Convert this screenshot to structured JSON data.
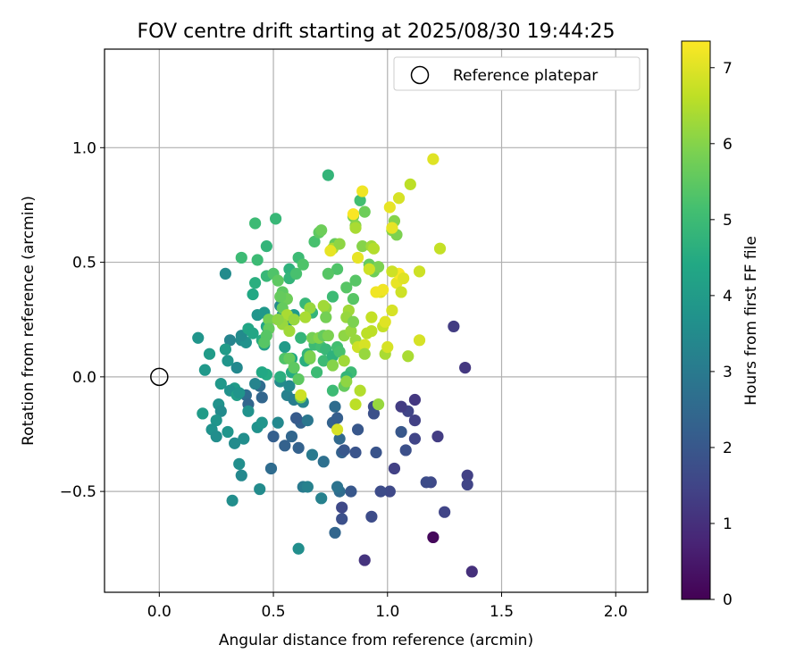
{
  "chart_data": {
    "type": "scatter",
    "title": "FOV centre drift starting at 2025/08/30 19:44:25",
    "xlabel": "Angular distance from reference (arcmin)",
    "ylabel": "Rotation from reference (arcmin)",
    "xlim": [
      -0.24,
      2.14
    ],
    "ylim": [
      -0.94,
      1.43
    ],
    "xticks": [
      0.0,
      0.5,
      1.0,
      1.5,
      2.0
    ],
    "xtick_labels": [
      "0.0",
      "0.5",
      "1.0",
      "1.5",
      "2.0"
    ],
    "yticks": [
      -0.5,
      0.0,
      0.5,
      1.0
    ],
    "ytick_labels": [
      "−0.5",
      "0.0",
      "0.5",
      "1.0"
    ],
    "grid": true,
    "legend": {
      "position": "top-right",
      "entries": [
        "Reference platepar"
      ]
    },
    "reference_point": {
      "x": 0.0,
      "y": 0.0
    },
    "colorbar": {
      "label": "Hours from first FF file",
      "range": [
        0,
        7.35
      ],
      "ticks": [
        0,
        1,
        2,
        3,
        4,
        5,
        6,
        7
      ],
      "tick_labels": [
        "0",
        "1",
        "2",
        "3",
        "4",
        "5",
        "6",
        "7"
      ]
    },
    "points": [
      [
        1.2,
        -0.7,
        0.15
      ],
      [
        1.37,
        -0.85,
        1.0
      ],
      [
        0.9,
        -0.8,
        1.1
      ],
      [
        1.34,
        0.04,
        1.2
      ],
      [
        1.29,
        0.22,
        1.3
      ],
      [
        1.22,
        -0.26,
        1.3
      ],
      [
        1.35,
        -0.43,
        1.4
      ],
      [
        1.35,
        -0.47,
        1.5
      ],
      [
        1.25,
        -0.59,
        1.5
      ],
      [
        1.19,
        -0.46,
        1.6
      ],
      [
        1.17,
        -0.46,
        1.7
      ],
      [
        1.12,
        -0.1,
        1.2
      ],
      [
        1.12,
        -0.19,
        1.4
      ],
      [
        1.12,
        -0.27,
        1.5
      ],
      [
        1.09,
        -0.15,
        1.5
      ],
      [
        1.06,
        -0.13,
        1.3
      ],
      [
        1.03,
        -0.4,
        1.4
      ],
      [
        1.01,
        -0.5,
        1.6
      ],
      [
        0.97,
        -0.5,
        1.7
      ],
      [
        1.08,
        -0.32,
        1.8
      ],
      [
        1.06,
        -0.24,
        2.0
      ],
      [
        0.95,
        -0.33,
        1.9
      ],
      [
        0.94,
        -0.13,
        1.7
      ],
      [
        0.94,
        -0.16,
        1.8
      ],
      [
        0.93,
        -0.61,
        1.7
      ],
      [
        0.86,
        -0.33,
        1.9
      ],
      [
        0.87,
        -0.23,
        2.0
      ],
      [
        0.84,
        -0.5,
        2.0
      ],
      [
        0.8,
        -0.62,
        1.8
      ],
      [
        0.8,
        -0.57,
        1.6
      ],
      [
        0.8,
        -0.33,
        2.3
      ],
      [
        0.81,
        -0.32,
        2.0
      ],
      [
        0.77,
        -0.68,
        2.4
      ],
      [
        0.79,
        -0.5,
        2.6
      ],
      [
        0.78,
        -0.48,
        2.8
      ],
      [
        0.77,
        -0.13,
        2.6
      ],
      [
        0.76,
        -0.2,
        2.3
      ],
      [
        0.78,
        -0.18,
        2.2
      ],
      [
        0.79,
        -0.27,
        2.5
      ],
      [
        0.72,
        -0.37,
        2.7
      ],
      [
        0.62,
        -0.2,
        2.3
      ],
      [
        0.61,
        -0.31,
        2.3
      ],
      [
        0.6,
        -0.18,
        2.1
      ],
      [
        0.58,
        -0.26,
        2.4
      ],
      [
        0.55,
        -0.3,
        2.3
      ],
      [
        0.5,
        -0.26,
        2.2
      ],
      [
        0.49,
        -0.4,
        2.6
      ],
      [
        0.45,
        -0.09,
        2.4
      ],
      [
        0.44,
        -0.04,
        2.6
      ],
      [
        0.38,
        -0.08,
        2.6
      ],
      [
        0.39,
        -0.12,
        2.4
      ],
      [
        0.65,
        -0.19,
        2.9
      ],
      [
        0.67,
        -0.34,
        3.0
      ],
      [
        0.71,
        -0.53,
        3.2
      ],
      [
        0.63,
        -0.48,
        3.0
      ],
      [
        0.65,
        -0.48,
        3.2
      ],
      [
        0.61,
        -0.75,
        3.6
      ],
      [
        0.52,
        -0.2,
        3.4
      ],
      [
        0.56,
        -0.08,
        3.2
      ],
      [
        0.57,
        -0.04,
        3.4
      ],
      [
        0.59,
        -0.1,
        3.1
      ],
      [
        0.63,
        -0.11,
        3.3
      ],
      [
        0.53,
        -0.02,
        3.5
      ],
      [
        0.42,
        -0.03,
        3.3
      ],
      [
        0.39,
        -0.15,
        3.7
      ],
      [
        0.43,
        -0.22,
        3.7
      ],
      [
        0.45,
        -0.2,
        3.8
      ],
      [
        0.37,
        -0.27,
        3.6
      ],
      [
        0.33,
        -0.29,
        3.5
      ],
      [
        0.36,
        -0.43,
        3.4
      ],
      [
        0.35,
        -0.38,
        3.6
      ],
      [
        0.32,
        -0.54,
        3.6
      ],
      [
        0.44,
        -0.49,
        3.5
      ],
      [
        0.3,
        -0.24,
        3.8
      ],
      [
        0.26,
        -0.12,
        3.7
      ],
      [
        0.27,
        -0.15,
        3.5
      ],
      [
        0.25,
        -0.19,
        3.8
      ],
      [
        0.23,
        -0.23,
        3.7
      ],
      [
        0.25,
        -0.26,
        3.6
      ],
      [
        0.27,
        -0.03,
        3.9
      ],
      [
        0.33,
        -0.05,
        4.0
      ],
      [
        0.31,
        -0.06,
        3.7
      ],
      [
        0.34,
        -0.08,
        4.1
      ],
      [
        0.35,
        -0.07,
        3.8
      ],
      [
        0.19,
        -0.16,
        4.0
      ],
      [
        0.3,
        0.07,
        3.8
      ],
      [
        0.34,
        0.04,
        3.4
      ],
      [
        0.31,
        0.16,
        3.3
      ],
      [
        0.36,
        0.16,
        3.5
      ],
      [
        0.38,
        0.15,
        3.7
      ],
      [
        0.36,
        0.18,
        3.5
      ],
      [
        0.29,
        0.45,
        3.5
      ],
      [
        0.17,
        0.17,
        3.8
      ],
      [
        0.2,
        0.03,
        3.9
      ],
      [
        0.22,
        0.1,
        4.0
      ],
      [
        0.29,
        0.12,
        4.0
      ],
      [
        0.39,
        0.21,
        4.3
      ],
      [
        0.41,
        0.19,
        4.3
      ],
      [
        0.43,
        0.27,
        3.8
      ],
      [
        0.46,
        0.14,
        4.1
      ],
      [
        0.45,
        0.16,
        4.5
      ],
      [
        0.47,
        0.22,
        4.3
      ],
      [
        0.46,
        0.28,
        3.9
      ],
      [
        0.53,
        0.31,
        3.5
      ],
      [
        0.54,
        0.27,
        3.6
      ],
      [
        0.56,
        0.24,
        3.7
      ],
      [
        0.59,
        0.27,
        4.0
      ],
      [
        0.55,
        0.13,
        4.0
      ],
      [
        0.58,
        0.08,
        4.4
      ],
      [
        0.58,
        0.02,
        4.5
      ],
      [
        0.53,
        0.0,
        4.6
      ],
      [
        0.47,
        0.01,
        4.5
      ],
      [
        0.45,
        0.02,
        4.4
      ],
      [
        0.41,
        0.36,
        4.4
      ],
      [
        0.42,
        0.41,
        4.6
      ],
      [
        0.47,
        0.57,
        4.8
      ],
      [
        0.51,
        0.69,
        4.9
      ],
      [
        0.47,
        0.44,
        4.9
      ],
      [
        0.36,
        0.52,
        5.0
      ],
      [
        0.42,
        0.67,
        5.0
      ],
      [
        0.43,
        0.51,
        5.0
      ],
      [
        0.57,
        0.47,
        4.7
      ],
      [
        0.57,
        0.43,
        4.8
      ],
      [
        0.61,
        0.52,
        5.0
      ],
      [
        0.68,
        0.59,
        5.2
      ],
      [
        0.74,
        0.88,
        4.8
      ],
      [
        0.6,
        0.45,
        5.2
      ],
      [
        0.63,
        0.49,
        5.3
      ],
      [
        0.64,
        0.32,
        4.9
      ],
      [
        0.67,
        0.28,
        4.8
      ],
      [
        0.62,
        0.17,
        4.8
      ],
      [
        0.64,
        0.07,
        4.6
      ],
      [
        0.65,
        0.1,
        4.8
      ],
      [
        0.68,
        0.14,
        5.0
      ],
      [
        0.71,
        0.13,
        5.1
      ],
      [
        0.69,
        0.02,
        5.0
      ],
      [
        0.72,
        0.07,
        5.0
      ],
      [
        0.73,
        0.12,
        4.9
      ],
      [
        0.76,
        0.09,
        4.7
      ],
      [
        0.78,
        0.13,
        5.1
      ],
      [
        0.79,
        0.11,
        5.2
      ],
      [
        0.84,
        0.02,
        5.0
      ],
      [
        0.82,
        0.0,
        4.8
      ],
      [
        0.76,
        -0.06,
        5.0
      ],
      [
        0.81,
        -0.04,
        5.6
      ],
      [
        0.76,
        0.35,
        5.0
      ],
      [
        0.78,
        0.47,
        5.3
      ],
      [
        0.74,
        0.45,
        5.4
      ],
      [
        0.77,
        0.58,
        5.6
      ],
      [
        0.82,
        0.39,
        5.4
      ],
      [
        0.85,
        0.34,
        5.4
      ],
      [
        0.86,
        0.42,
        5.4
      ],
      [
        0.88,
        0.77,
        5.1
      ],
      [
        0.9,
        0.72,
        5.7
      ],
      [
        0.92,
        0.49,
        5.6
      ],
      [
        0.94,
        0.46,
        5.7
      ],
      [
        0.96,
        0.48,
        5.9
      ],
      [
        1.02,
        0.64,
        6.0
      ],
      [
        1.03,
        0.68,
        6.0
      ],
      [
        1.04,
        0.62,
        5.9
      ],
      [
        0.85,
        0.7,
        5.8
      ],
      [
        0.86,
        0.66,
        6.0
      ],
      [
        0.89,
        0.57,
        6.0
      ],
      [
        0.93,
        0.57,
        6.3
      ],
      [
        0.94,
        0.56,
        6.5
      ],
      [
        0.86,
        0.65,
        6.4
      ],
      [
        0.7,
        0.63,
        5.5
      ],
      [
        0.71,
        0.64,
        5.7
      ],
      [
        0.76,
        0.56,
        6.4
      ],
      [
        0.79,
        0.58,
        6.1
      ],
      [
        0.5,
        0.45,
        5.3
      ],
      [
        0.52,
        0.42,
        5.5
      ],
      [
        0.54,
        0.37,
        5.5
      ],
      [
        0.56,
        0.34,
        5.7
      ],
      [
        0.53,
        0.35,
        5.6
      ],
      [
        0.54,
        0.3,
        5.6
      ],
      [
        0.48,
        0.25,
        5.8
      ],
      [
        0.48,
        0.21,
        5.6
      ],
      [
        0.47,
        0.18,
        5.4
      ],
      [
        0.46,
        0.15,
        5.4
      ],
      [
        0.55,
        0.08,
        5.3
      ],
      [
        0.57,
        0.08,
        5.6
      ],
      [
        0.59,
        0.04,
        5.5
      ],
      [
        0.61,
        -0.01,
        5.5
      ],
      [
        0.62,
        -0.09,
        5.8
      ],
      [
        0.66,
        0.08,
        5.8
      ],
      [
        0.66,
        0.09,
        5.9
      ],
      [
        0.67,
        0.17,
        5.8
      ],
      [
        0.7,
        0.17,
        6.0
      ],
      [
        0.72,
        0.18,
        5.6
      ],
      [
        0.74,
        0.18,
        5.9
      ],
      [
        0.76,
        0.05,
        6.0
      ],
      [
        0.73,
        0.3,
        6.1
      ],
      [
        0.72,
        0.31,
        6.3
      ],
      [
        0.73,
        0.26,
        5.8
      ],
      [
        0.66,
        0.3,
        6.2
      ],
      [
        0.64,
        0.26,
        6.4
      ],
      [
        0.56,
        0.27,
        6.4
      ],
      [
        0.54,
        0.23,
        6.2
      ],
      [
        0.57,
        0.2,
        6.3
      ],
      [
        0.59,
        0.25,
        6.2
      ],
      [
        0.52,
        0.25,
        6.1
      ],
      [
        0.83,
        0.29,
        6.3
      ],
      [
        0.82,
        0.26,
        6.2
      ],
      [
        0.81,
        0.18,
        6.1
      ],
      [
        0.84,
        0.2,
        6.2
      ],
      [
        0.86,
        0.16,
        6.2
      ],
      [
        0.85,
        0.24,
        5.9
      ],
      [
        0.81,
        0.07,
        6.3
      ],
      [
        0.82,
        -0.02,
        6.1
      ],
      [
        0.86,
        -0.12,
        6.6
      ],
      [
        0.88,
        -0.06,
        6.5
      ],
      [
        0.87,
        0.13,
        6.8
      ],
      [
        0.9,
        0.14,
        6.9
      ],
      [
        0.91,
        0.19,
        6.6
      ],
      [
        0.93,
        0.26,
        6.7
      ],
      [
        0.93,
        0.2,
        6.6
      ],
      [
        0.9,
        0.1,
        6.2
      ],
      [
        0.98,
        0.22,
        6.7
      ],
      [
        0.99,
        0.1,
        6.4
      ],
      [
        1.0,
        0.13,
        6.9
      ],
      [
        0.99,
        0.24,
        7.0
      ],
      [
        1.02,
        0.29,
        6.9
      ],
      [
        0.97,
        0.37,
        7.0
      ],
      [
        0.98,
        0.38,
        7.2
      ],
      [
        1.04,
        0.41,
        7.1
      ],
      [
        1.05,
        0.45,
        7.3
      ],
      [
        1.06,
        0.37,
        6.8
      ],
      [
        1.02,
        0.46,
        6.8
      ],
      [
        1.07,
        0.43,
        7.0
      ],
      [
        1.1,
        0.84,
        6.6
      ],
      [
        1.2,
        0.95,
        7.0
      ],
      [
        1.23,
        0.56,
        6.7
      ],
      [
        1.14,
        0.46,
        6.8
      ],
      [
        1.14,
        0.16,
        6.9
      ],
      [
        1.09,
        0.09,
        6.4
      ],
      [
        0.92,
        0.47,
        6.8
      ],
      [
        0.87,
        0.52,
        7.1
      ],
      [
        0.85,
        0.71,
        7.3
      ],
      [
        0.89,
        0.81,
        7.2
      ],
      [
        1.01,
        0.74,
        7.1
      ],
      [
        1.05,
        0.78,
        6.9
      ],
      [
        1.02,
        0.65,
        7.1
      ],
      [
        0.95,
        0.37,
        7.2
      ],
      [
        0.78,
        -0.23,
        6.9
      ],
      [
        0.75,
        0.55,
        7.1
      ],
      [
        0.62,
        -0.08,
        6.8
      ],
      [
        0.96,
        -0.12,
        6.2
      ]
    ]
  }
}
